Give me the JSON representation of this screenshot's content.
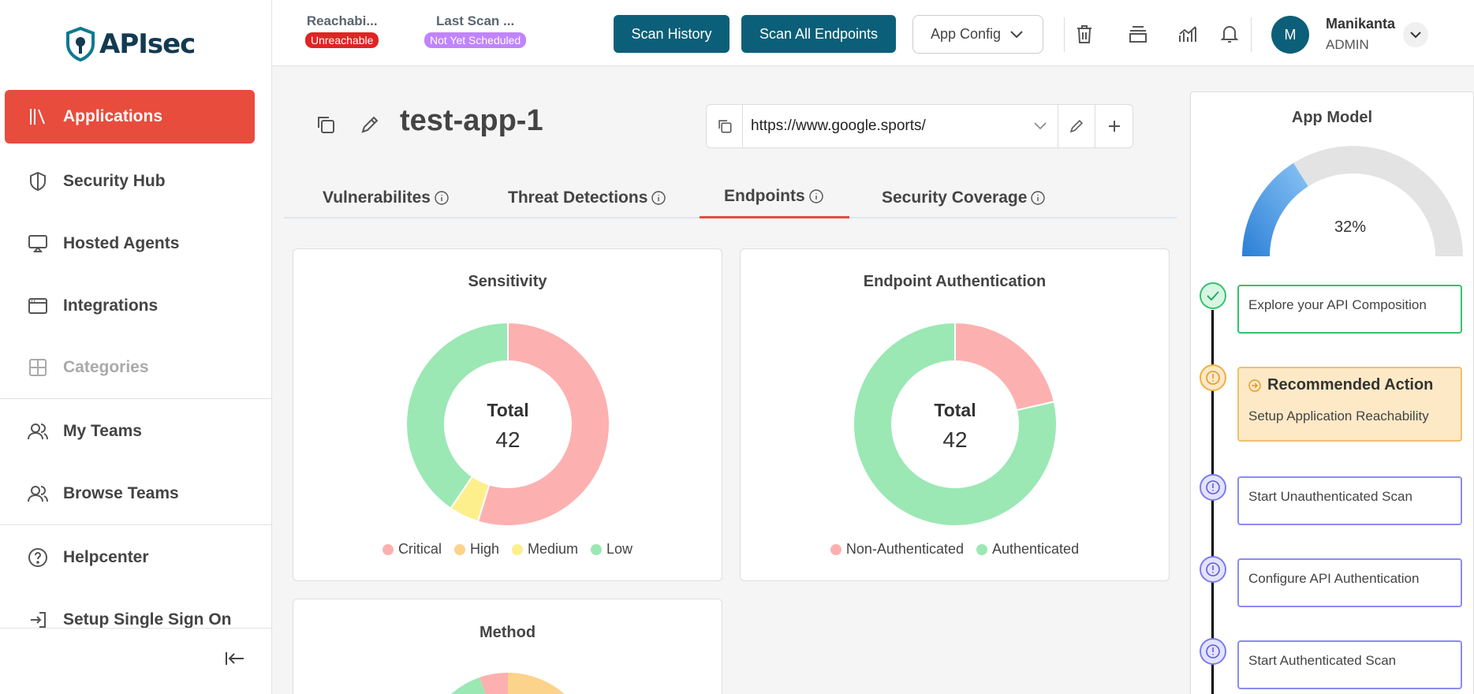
{
  "brand": {
    "name": "APIsec"
  },
  "sidebar": {
    "items": [
      {
        "label": "Applications",
        "icon": "library-icon"
      },
      {
        "label": "Security Hub",
        "icon": "shield-icon"
      },
      {
        "label": "Hosted Agents",
        "icon": "cast-icon"
      },
      {
        "label": "Integrations",
        "icon": "browser-window-icon"
      },
      {
        "label": "Categories",
        "icon": "grid-icon"
      },
      {
        "label": "My Teams",
        "icon": "users-icon"
      },
      {
        "label": "Browse Teams",
        "icon": "users-icon"
      },
      {
        "label": "Helpcenter",
        "icon": "help-circle-icon"
      },
      {
        "label": "Setup Single Sign On",
        "icon": "login-icon"
      }
    ]
  },
  "topbar": {
    "reachability": {
      "title": "Reachabi...",
      "badge": "Unreachable",
      "color": "#e02424"
    },
    "last_scan": {
      "title": "Last Scan ...",
      "badge": "Not Yet Scheduled",
      "color": "#c084fc"
    },
    "scan_history": "Scan History",
    "scan_all": "Scan All Endpoints",
    "app_config": "App Config",
    "user": {
      "initial": "M",
      "name": "Manikanta",
      "role": "ADMIN"
    }
  },
  "app": {
    "title": "test-app-1",
    "url": "https://www.google.sports/"
  },
  "tabs": [
    {
      "label": "Vulnerabilites"
    },
    {
      "label": "Threat Detections"
    },
    {
      "label": "Endpoints"
    },
    {
      "label": "Security Coverage"
    }
  ],
  "active_tab": "Endpoints",
  "chart_data": [
    {
      "type": "pie",
      "title": "Sensitivity",
      "center_label": "Total",
      "center_value": "42",
      "categories": [
        "Critical",
        "High",
        "Medium",
        "Low"
      ],
      "values": [
        23,
        0,
        2,
        17
      ],
      "colors": [
        "#fdb0b0",
        "#fcd38a",
        "#fdef8c",
        "#9be8b4"
      ]
    },
    {
      "type": "pie",
      "title": "Endpoint Authentication",
      "center_label": "Total",
      "center_value": "42",
      "categories": [
        "Non-Authenticated",
        "Authenticated"
      ],
      "values": [
        9,
        33
      ],
      "colors": [
        "#fdb0b0",
        "#9be8b4"
      ]
    },
    {
      "type": "pie",
      "title": "Method",
      "categories": [],
      "values": []
    }
  ],
  "app_model": {
    "title": "App Model",
    "progress": 32,
    "progress_label": "32%",
    "steps": [
      {
        "label": "Explore your API Composition",
        "state": "done"
      },
      {
        "heading": "Recommended Action",
        "label": "Setup Application Reachability",
        "state": "recommended"
      },
      {
        "label": "Start Unauthenticated Scan",
        "state": "pending"
      },
      {
        "label": "Configure API Authentication",
        "state": "pending"
      },
      {
        "label": "Start Authenticated Scan",
        "state": "pending"
      }
    ]
  }
}
